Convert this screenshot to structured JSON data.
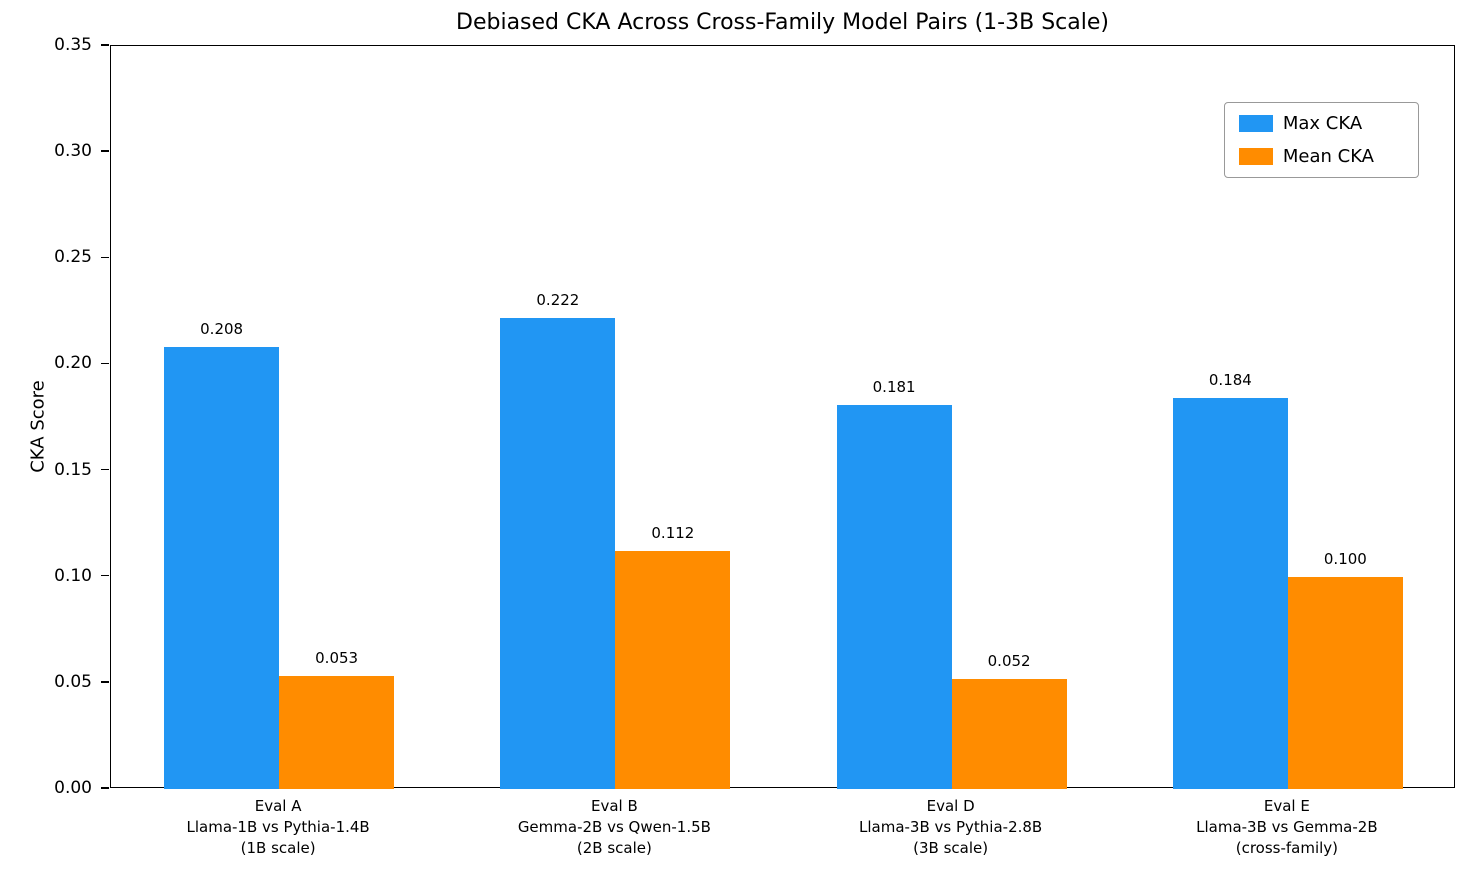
{
  "chart_data": {
    "type": "bar",
    "title": "Debiased CKA Across Cross-Family Model Pairs (1-3B Scale)",
    "xlabel": "",
    "ylabel": "CKA Score",
    "ylim": [
      0,
      0.35
    ],
    "yticks": [
      0.0,
      0.05,
      0.1,
      0.15,
      0.2,
      0.25,
      0.3,
      0.35
    ],
    "grid": false,
    "legend_position": "upper right",
    "categories": [
      [
        "Eval A",
        "Llama-1B vs Pythia-1.4B",
        "(1B scale)"
      ],
      [
        "Eval B",
        "Gemma-2B vs Qwen-1.5B",
        "(2B scale)"
      ],
      [
        "Eval D",
        "Llama-3B vs Pythia-2.8B",
        "(3B scale)"
      ],
      [
        "Eval E",
        "Llama-3B vs Gemma-2B",
        "(cross-family)"
      ]
    ],
    "series": [
      {
        "name": "Max CKA",
        "color": "#2196F3",
        "values": [
          0.208,
          0.222,
          0.181,
          0.184
        ]
      },
      {
        "name": "Mean CKA",
        "color": "#FF8C00",
        "values": [
          0.053,
          0.112,
          0.052,
          0.1
        ]
      }
    ]
  }
}
